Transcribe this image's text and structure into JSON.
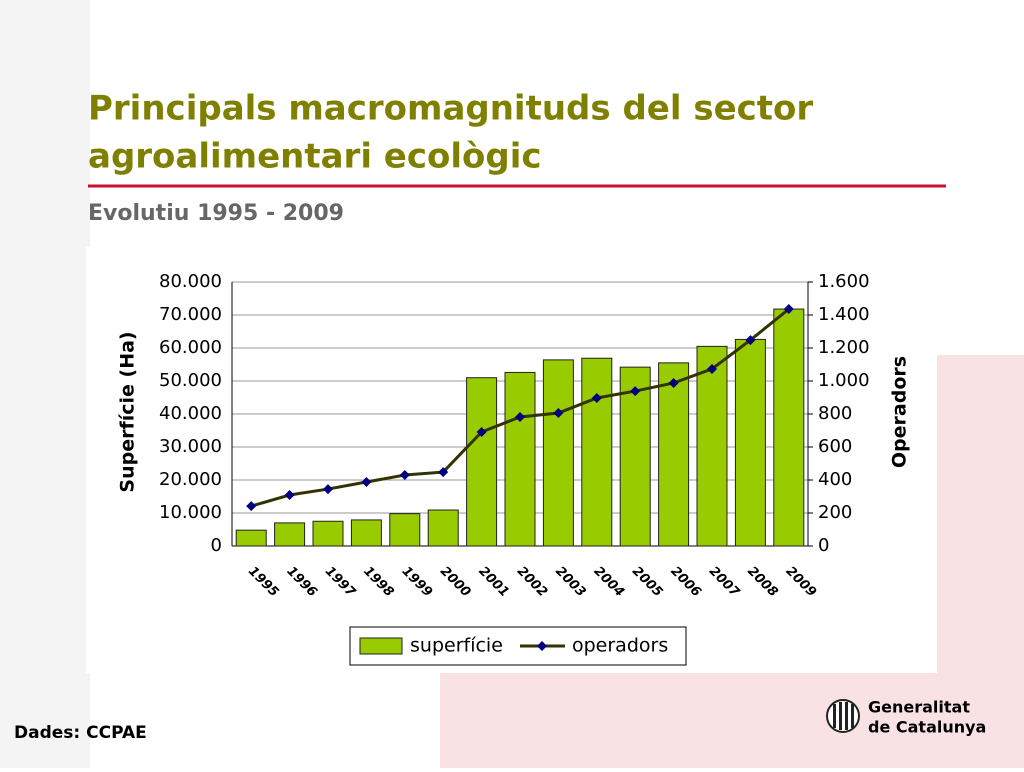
{
  "chart_data": {
    "type": "bar",
    "title": "Principals macromagnituds del sector",
    "title_line2": "agroalimentari ecològic",
    "subtitle": "Evolutiu 1995 - 2009",
    "categories": [
      "1995",
      "1996",
      "1997",
      "1998",
      "1999",
      "2000",
      "2001",
      "2002",
      "2003",
      "2004",
      "2005",
      "2006",
      "2007",
      "2008",
      "2009"
    ],
    "series": [
      {
        "name": "superfície",
        "type": "bar",
        "color": "#99cc00",
        "values": [
          4800,
          7000,
          7500,
          7900,
          9800,
          10900,
          51000,
          52600,
          56400,
          56900,
          54200,
          55500,
          60500,
          62600,
          71800
        ]
      },
      {
        "name": "operadors",
        "type": "line",
        "axis": "y2",
        "color": "#333300",
        "marker_color": "#000080",
        "values": [
          242,
          309,
          345,
          388,
          430,
          448,
          691,
          782,
          806,
          897,
          939,
          988,
          1073,
          1248,
          1436
        ]
      }
    ],
    "ylabel": "Superfície (Ha)",
    "y2label": "Operadors",
    "ylim": [
      0,
      80000
    ],
    "yticks": [
      0,
      {
        "value": 10000,
        "label": "10.000"
      },
      {
        "value": 20000,
        "label": "20.000"
      },
      {
        "value": 30000,
        "label": "30.000"
      },
      {
        "value": 40000,
        "label": "40.000"
      },
      {
        "value": 50000,
        "label": "50.000"
      },
      {
        "value": 60000,
        "label": "60.000"
      },
      {
        "value": 70000,
        "label": "70.000"
      },
      {
        "value": 80000,
        "label": "80.000"
      }
    ],
    "y2lim": [
      0,
      1600
    ],
    "y2ticks": [
      0,
      200,
      400,
      600,
      800,
      {
        "value": 1000,
        "label": "1.000"
      },
      {
        "value": 1200,
        "label": "1.200"
      },
      {
        "value": 1400,
        "label": "1.400"
      },
      {
        "value": 1600,
        "label": "1.600"
      }
    ],
    "grid": true,
    "legend": "bottom"
  },
  "source": "Dades: CCPAE",
  "logo": {
    "line1": "Generalitat",
    "line2": "de Catalunya"
  }
}
